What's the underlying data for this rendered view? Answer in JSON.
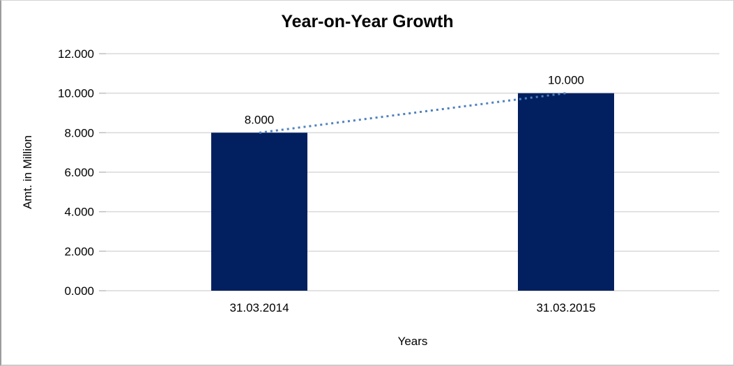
{
  "chart_data": {
    "type": "bar",
    "title": "Year-on-Year Growth",
    "xlabel": "Years",
    "ylabel": "Amt. in Million",
    "categories": [
      "31.03.2014",
      "31.03.2015"
    ],
    "values": [
      8,
      10
    ],
    "data_labels": [
      "8.000",
      "10.000"
    ],
    "ytick_values": [
      0,
      2,
      4,
      6,
      8,
      10,
      12
    ],
    "ytick_labels": [
      "0.000",
      "2.000",
      "4.000",
      "6.000",
      "8.000",
      "10.000",
      "12.000"
    ],
    "ylim": [
      0,
      12
    ],
    "grid": "horizontal",
    "legend": "none",
    "trendline": {
      "style": "dotted",
      "from_value": 8,
      "to_value": 10
    },
    "colors": {
      "bar": "#02205f",
      "trendline": "#4f81bd",
      "gridline": "#d9d9d9",
      "tick": "#bfbfbf",
      "text": "#000000",
      "background": "#ffffff"
    }
  }
}
